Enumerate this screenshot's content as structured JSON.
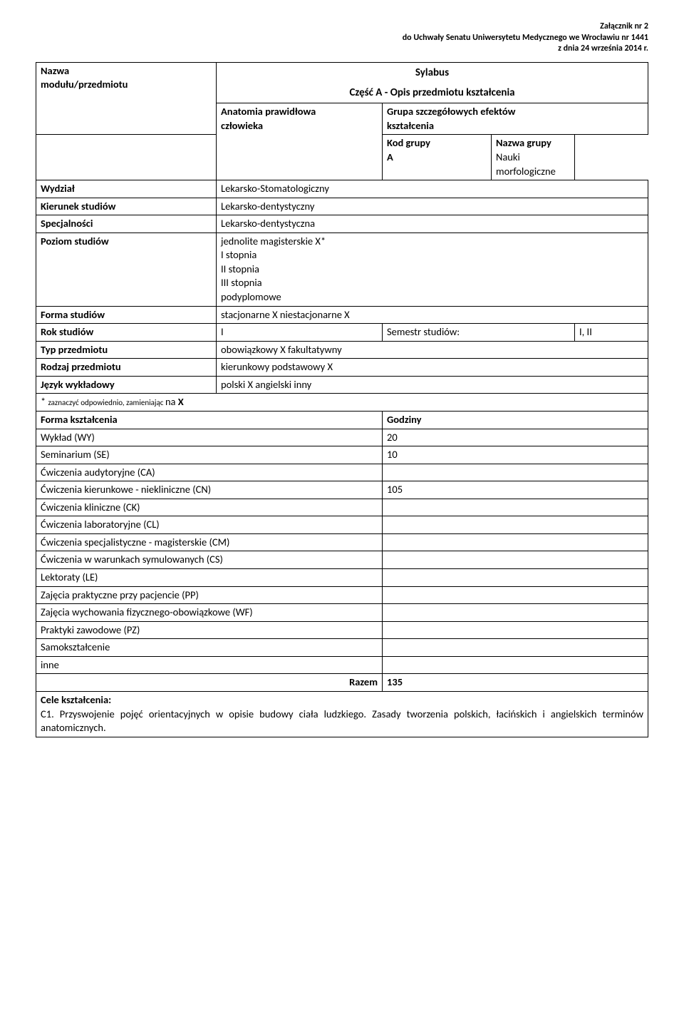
{
  "header": {
    "line1": "Załącznik nr 2",
    "line2": "do Uchwały Senatu Uniwersytetu Medycznego we Wrocławiu nr 1441",
    "line3": "z dnia 24 września 2014 r."
  },
  "title": {
    "main": "Sylabus",
    "sub": "Część A - Opis przedmiotu kształcenia"
  },
  "block1": {
    "nazwa_label": "Nazwa\nmodułu/przedmiotu",
    "nazwa_value": "Anatomia prawidłowa\nczłowieka",
    "grupa_header": "Grupa szczegółowych efektów\nkształcenia",
    "kod_label": "Kod grupy",
    "kod_value": "A",
    "nazwa_grupy_label": "Nazwa grupy",
    "nazwa_grupy_value": "Nauki morfologiczne"
  },
  "rows": {
    "wydzial": {
      "label": "Wydział",
      "value": "Lekarsko-Stomatologiczny"
    },
    "kierunek": {
      "label": "Kierunek studiów",
      "value": "Lekarsko-dentystyczny"
    },
    "specjalnosci": {
      "label": "Specjalności",
      "value": "Lekarsko-dentystyczna"
    },
    "poziom": {
      "label": "Poziom studiów",
      "value": "jednolite magisterskie X*\nI stopnia\nII stopnia\nIII stopnia\npodyplomowe"
    },
    "forma_st": {
      "label": "Forma studiów",
      "value": "stacjonarne  X   niestacjonarne  X"
    },
    "rok": {
      "label": "Rok studiów",
      "value": "I",
      "semestr_label": "Semestr studiów:",
      "semestr_value": "I, II"
    },
    "typ": {
      "label": "Typ przedmiotu",
      "value": "obowiązkowy  X   fakultatywny"
    },
    "rodzaj": {
      "label": "Rodzaj przedmiotu",
      "value": "kierunkowy         podstawowy  X"
    },
    "jezyk": {
      "label": "Język wykładowy",
      "value": "polski X   angielski         inny"
    },
    "footnote": {
      "prefix": "* ",
      "small": "zaznaczyć odpowiednio, zamieniając ",
      "suffix": "        na ",
      "bold": "X"
    }
  },
  "forma": {
    "header_left": "Forma kształcenia",
    "header_right": "Godziny",
    "items": [
      {
        "label": "Wykład (WY)",
        "hours": "20"
      },
      {
        "label": "Seminarium (SE)",
        "hours": "10"
      },
      {
        "label": "Ćwiczenia audytoryjne (CA)",
        "hours": ""
      },
      {
        "label": "Ćwiczenia kierunkowe - niekliniczne (CN)",
        "hours": "105"
      },
      {
        "label": "Ćwiczenia kliniczne (CK)",
        "hours": ""
      },
      {
        "label": "Ćwiczenia laboratoryjne (CL)",
        "hours": ""
      },
      {
        "label": "Ćwiczenia specjalistyczne - magisterskie (CM)",
        "hours": ""
      },
      {
        "label": "Ćwiczenia w warunkach symulowanych (CS)",
        "hours": ""
      },
      {
        "label": "Lektoraty (LE)",
        "hours": ""
      },
      {
        "label": "Zajęcia praktyczne przy pacjencie (PP)",
        "hours": ""
      },
      {
        "label": "Zajęcia wychowania fizycznego-obowiązkowe (WF)",
        "hours": ""
      },
      {
        "label": "Praktyki zawodowe (PZ)",
        "hours": ""
      },
      {
        "label": "Samokształcenie",
        "hours": ""
      },
      {
        "label": "inne",
        "hours": ""
      }
    ],
    "razem_label": "Razem",
    "razem_value": "135"
  },
  "cele": {
    "title": "Cele kształcenia:",
    "c1": "C1. Przyswojenie pojęć orientacyjnych w opisie budowy ciała ludzkiego. Zasady tworzenia polskich, łacińskich i angielskich terminów anatomicznych."
  }
}
